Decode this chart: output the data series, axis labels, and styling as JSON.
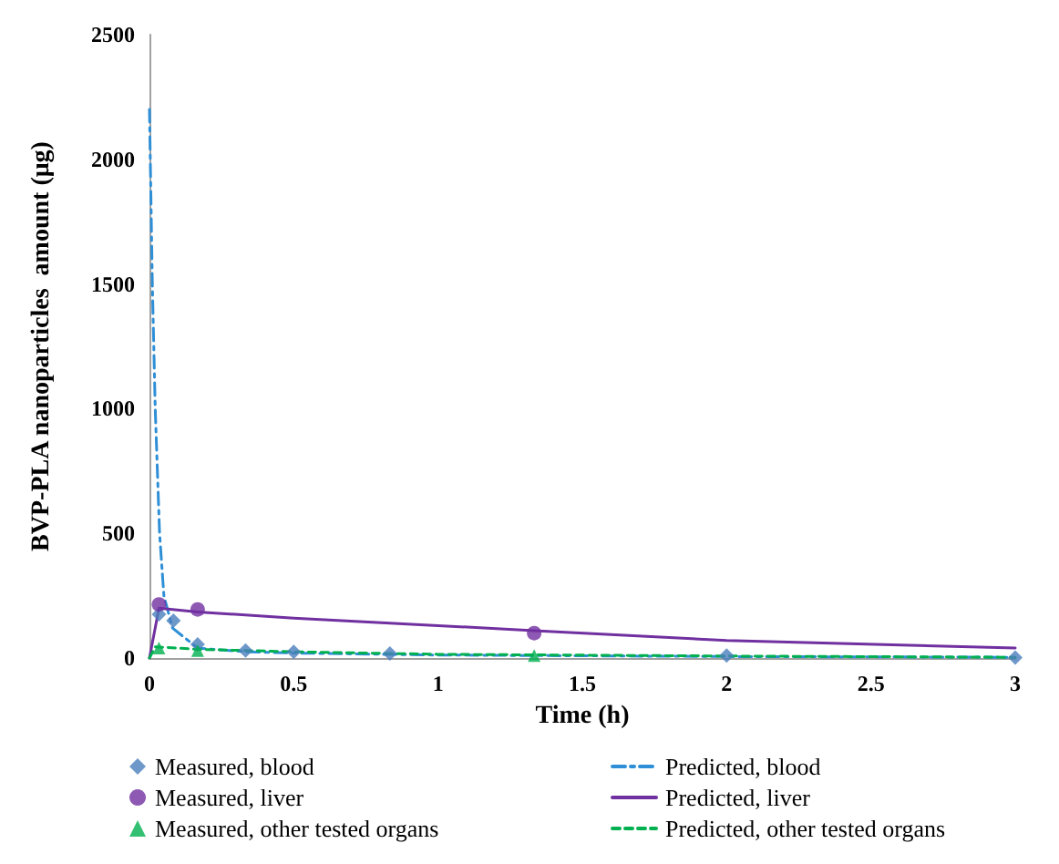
{
  "chart_data": {
    "type": "scatter",
    "xlabel": "Time (h)",
    "ylabel": "BVP-PLA nanoparticles  amount (μg)",
    "xlim": [
      0,
      3
    ],
    "xticks": [
      0,
      0.5,
      1,
      1.5,
      2,
      2.5,
      3
    ],
    "ylim": [
      0,
      2500
    ],
    "yticks": [
      0,
      500,
      1000,
      1500,
      2000,
      2500
    ],
    "grid": false,
    "legend": "bottom",
    "series": [
      {
        "name": "Measured, blood",
        "marker": "diamond",
        "color": "#4a7ebb",
        "x": [
          0.033,
          0.083,
          0.167,
          0.333,
          0.5,
          0.833,
          1.333,
          2,
          3
        ],
        "values": [
          175,
          150,
          55,
          30,
          25,
          18,
          null,
          10,
          2
        ]
      },
      {
        "name": "Predicted, blood",
        "type": "line",
        "line_style": "dashdot",
        "color": "#2e8fd6",
        "x": [
          0,
          0.01,
          0.02,
          0.035,
          0.05,
          0.08,
          0.167,
          0.333,
          0.5,
          1,
          2,
          3
        ],
        "values": [
          2200,
          1500,
          1000,
          500,
          250,
          120,
          40,
          25,
          20,
          12,
          6,
          3
        ]
      },
      {
        "name": "Measured, liver",
        "marker": "circle",
        "color": "#7030a0",
        "x": [
          0.033,
          0.167,
          1.333
        ],
        "values": [
          215,
          195,
          100
        ]
      },
      {
        "name": "Predicted, liver",
        "type": "line",
        "line_style": "solid",
        "color": "#7030a0",
        "x": [
          0,
          0.033,
          0.167,
          0.5,
          1,
          1.333,
          2,
          3
        ],
        "values": [
          0,
          200,
          185,
          160,
          130,
          110,
          70,
          40
        ]
      },
      {
        "name": "Measured, other tested organs",
        "marker": "triangle",
        "color": "#00b050",
        "x": [
          0.033,
          0.167,
          1.333
        ],
        "values": [
          40,
          30,
          10
        ]
      },
      {
        "name": "Predicted, other tested organs",
        "type": "line",
        "line_style": "dashed",
        "color": "#00b050",
        "x": [
          0,
          0.02,
          0.167,
          0.5,
          1,
          2,
          3
        ],
        "values": [
          0,
          45,
          35,
          25,
          15,
          8,
          3
        ]
      }
    ]
  }
}
